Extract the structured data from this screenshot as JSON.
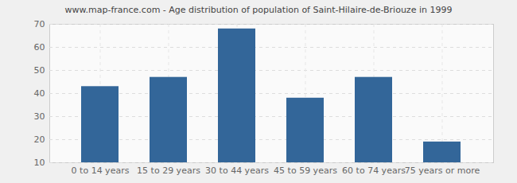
{
  "chart_data": {
    "type": "bar",
    "title": "www.map-france.com - Age distribution of population of Saint-Hilaire-de-Briouze in 1999",
    "categories": [
      "0 to 14 years",
      "15 to 29 years",
      "30 to 44 years",
      "45 to 59 years",
      "60 to 74 years",
      "75 years or more"
    ],
    "values": [
      43,
      47,
      68,
      38,
      47,
      19
    ],
    "color": "#336699",
    "ylim": [
      10,
      70
    ],
    "yticks": [
      10,
      20,
      30,
      40,
      50,
      60,
      70
    ],
    "grid": true
  }
}
